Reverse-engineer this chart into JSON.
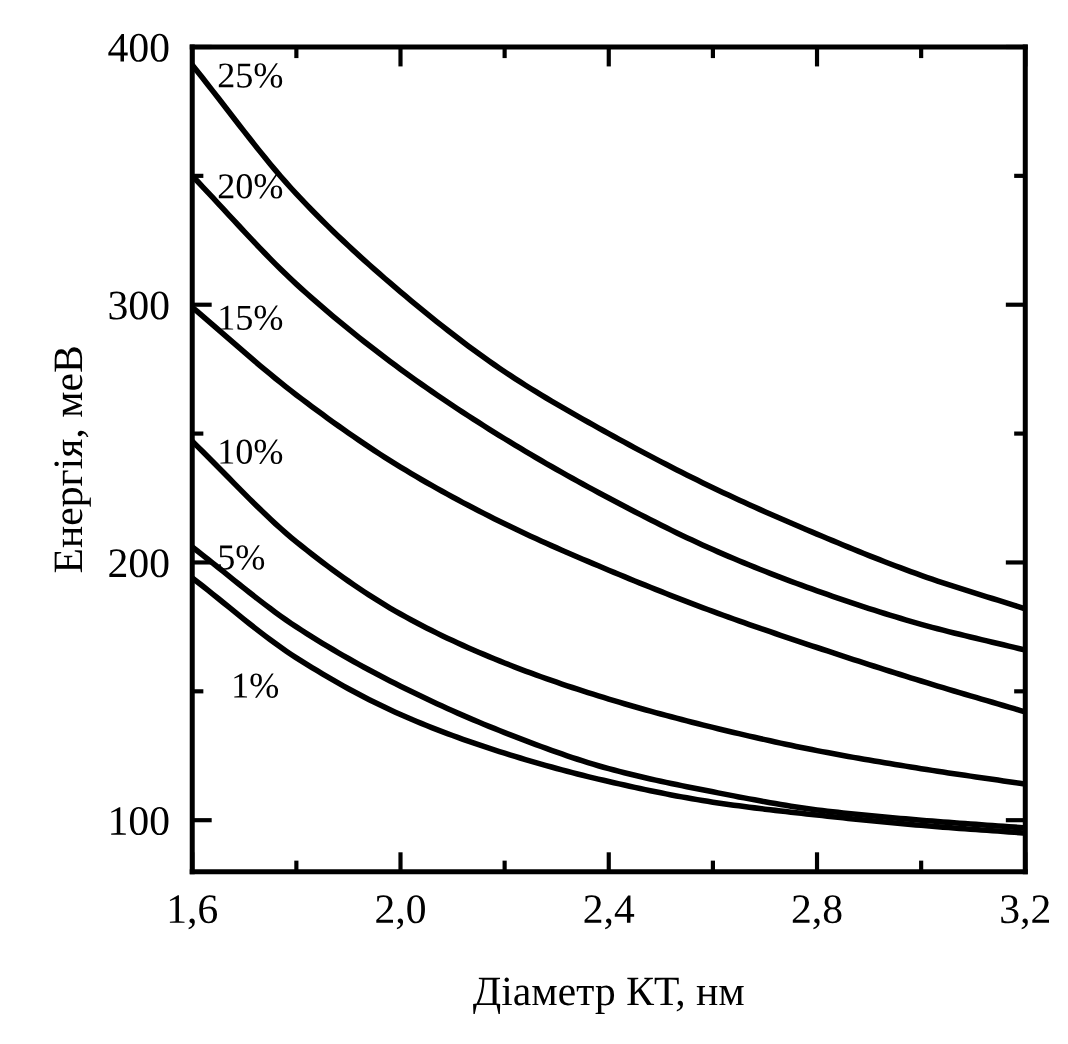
{
  "chart_data": {
    "type": "line",
    "xlabel": "Діаметр КТ, нм",
    "ylabel": "Енергія, меВ",
    "x": [
      1.6,
      1.8,
      2.0,
      2.2,
      2.4,
      2.6,
      2.8,
      3.0,
      3.2
    ],
    "series": [
      {
        "name": "25%",
        "color": "#000000",
        "values": [
          393,
          343,
          305,
          274,
          250,
          229,
          211,
          195,
          182
        ]
      },
      {
        "name": "20%",
        "color": "#000000",
        "values": [
          350,
          308,
          275,
          248,
          225,
          205,
          189,
          176,
          166
        ]
      },
      {
        "name": "15%",
        "color": "#000000",
        "values": [
          299,
          265,
          237,
          215,
          197,
          181,
          167,
          154,
          142
        ]
      },
      {
        "name": "10%",
        "color": "#000000",
        "values": [
          247,
          208,
          180,
          161,
          147,
          136,
          127,
          120,
          114
        ]
      },
      {
        "name": "5%",
        "color": "#000000",
        "values": [
          206,
          175,
          152,
          134,
          120,
          111,
          104,
          100,
          97
        ]
      },
      {
        "name": "1%",
        "color": "#000000",
        "values": [
          194,
          163,
          141,
          126,
          115,
          107,
          102,
          98,
          95
        ]
      }
    ],
    "xlim": [
      1.6,
      3.2
    ],
    "ylim": [
      80,
      400
    ],
    "xticks": [
      {
        "value": 1.6,
        "label": "1,6"
      },
      {
        "value": 2.0,
        "label": "2,0"
      },
      {
        "value": 2.4,
        "label": "2,4"
      },
      {
        "value": 2.8,
        "label": "2,8"
      },
      {
        "value": 3.2,
        "label": "3,2"
      }
    ],
    "yticks": [
      100,
      200,
      300,
      400
    ],
    "grid": false,
    "line_style": "solid",
    "marker": "none"
  }
}
